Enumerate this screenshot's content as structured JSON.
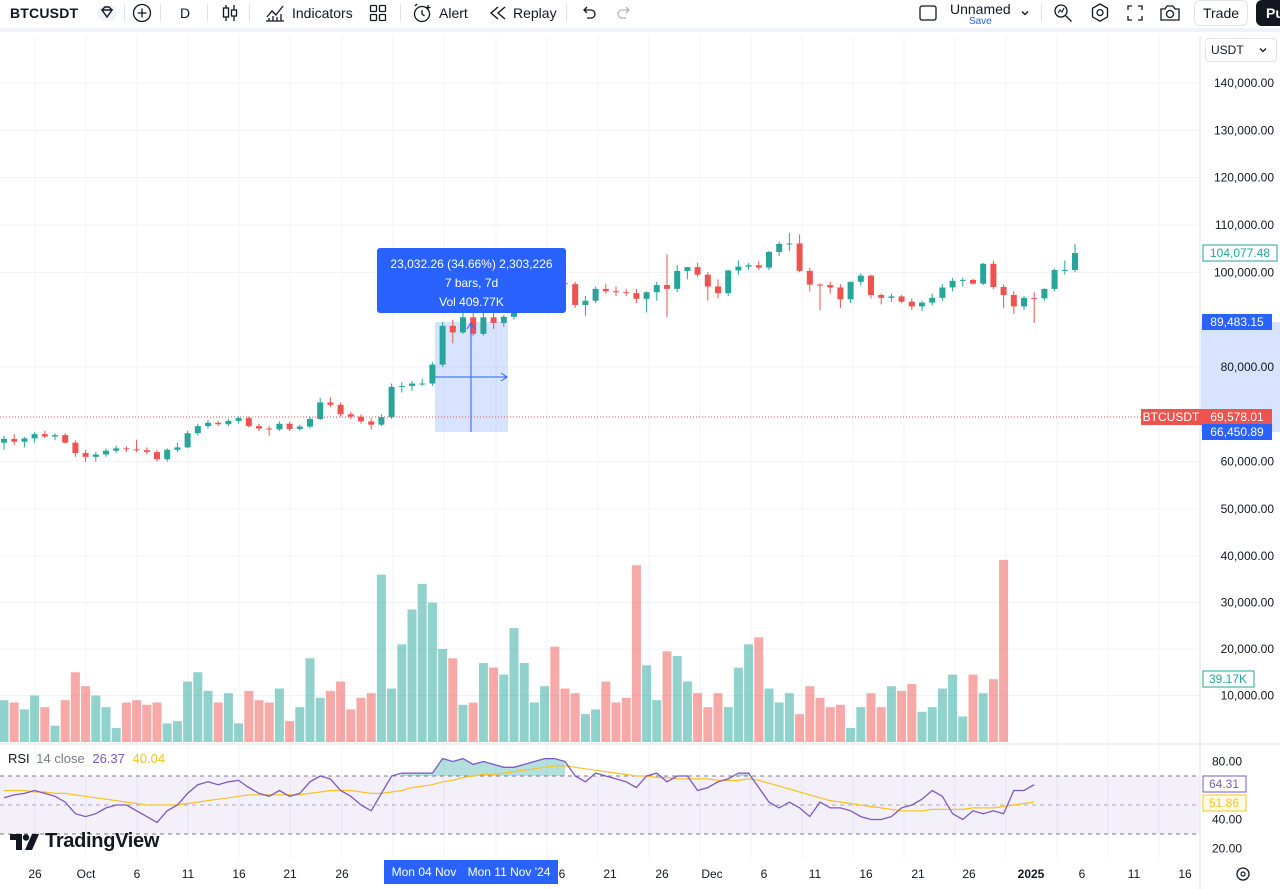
{
  "toolbar": {
    "symbol": "BTCUSDT",
    "interval": "D",
    "indicators_label": "Indicators",
    "alert_label": "Alert",
    "replay_label": "Replay",
    "layout_name": "Unnamed",
    "save_label": "Save",
    "trade_label": "Trade",
    "publish_label": "Pu"
  },
  "price_scale": {
    "currency": "USDT",
    "ticks": [
      "140,000.00",
      "130,000.00",
      "120,000.00",
      "110,000.00",
      "100,000.00",
      "80,000.00",
      "60,000.00",
      "50,000.00",
      "40,000.00",
      "30,000.00",
      "20,000.00",
      "10,000.00"
    ],
    "last_price_tag": "104,077.48",
    "measure_top_tag": "89,483.15",
    "measure_bottom_tag": "66,450.89",
    "crosshair_symbol": "BTCUSDT",
    "crosshair_price": "69,578.01",
    "volume_tag": "39.17K"
  },
  "measure": {
    "line1": "23,032.26 (34.66%) 2,303,226",
    "line2": "7 bars, 7d",
    "line3": "Vol 409.77K"
  },
  "rsi": {
    "name": "RSI",
    "params": "14 close",
    "value": "26.37",
    "ma_value": "40.04",
    "ticks": [
      "80.00",
      "40.00",
      "20.00"
    ],
    "tag_value": "64.31",
    "tag_ma": "51.86"
  },
  "time_axis": {
    "labels": [
      "26",
      "Oct",
      "6",
      "11",
      "16",
      "21",
      "26",
      "6",
      "21",
      "26",
      "Dec",
      "6",
      "11",
      "16",
      "21",
      "26",
      "2025",
      "6",
      "11",
      "16"
    ],
    "tip_start": "Mon 04 Nov",
    "tip_end": "Mon 11 Nov '24"
  },
  "branding": {
    "logo_text": "TradingView"
  },
  "colors": {
    "up": "#26a69a",
    "down": "#ef5350",
    "accent": "#2962ff",
    "rsi": "#7e57c2",
    "rsi_ma": "#f7c325"
  },
  "chart_data": {
    "type": "candlestick",
    "ylim": [
      40000,
      145000
    ],
    "candles": [
      {
        "o": 64000,
        "h": 65500,
        "l": 62500,
        "c": 64800
      },
      {
        "o": 64800,
        "h": 65800,
        "l": 63500,
        "c": 64200
      },
      {
        "o": 64200,
        "h": 65200,
        "l": 63000,
        "c": 64900
      },
      {
        "o": 64900,
        "h": 66200,
        "l": 64000,
        "c": 65800
      },
      {
        "o": 65800,
        "h": 66500,
        "l": 65000,
        "c": 65300
      },
      {
        "o": 65300,
        "h": 66000,
        "l": 64500,
        "c": 65600
      },
      {
        "o": 65600,
        "h": 66000,
        "l": 63800,
        "c": 64000
      },
      {
        "o": 64000,
        "h": 64500,
        "l": 61000,
        "c": 61800
      },
      {
        "o": 61800,
        "h": 62500,
        "l": 60000,
        "c": 61000
      },
      {
        "o": 61000,
        "h": 62000,
        "l": 60000,
        "c": 61500
      },
      {
        "o": 61500,
        "h": 62800,
        "l": 61000,
        "c": 62300
      },
      {
        "o": 62300,
        "h": 63400,
        "l": 61800,
        "c": 62800
      },
      {
        "o": 62800,
        "h": 63200,
        "l": 62000,
        "c": 62600
      },
      {
        "o": 62600,
        "h": 64600,
        "l": 62000,
        "c": 62400
      },
      {
        "o": 62400,
        "h": 63000,
        "l": 61500,
        "c": 62000
      },
      {
        "o": 62000,
        "h": 62500,
        "l": 60000,
        "c": 60500
      },
      {
        "o": 60500,
        "h": 62800,
        "l": 60000,
        "c": 62500
      },
      {
        "o": 62500,
        "h": 64000,
        "l": 62000,
        "c": 63000
      },
      {
        "o": 63000,
        "h": 66500,
        "l": 62800,
        "c": 66000
      },
      {
        "o": 66000,
        "h": 68000,
        "l": 65500,
        "c": 67500
      },
      {
        "o": 67500,
        "h": 68800,
        "l": 67000,
        "c": 68200
      },
      {
        "o": 68200,
        "h": 68600,
        "l": 67500,
        "c": 67900
      },
      {
        "o": 67900,
        "h": 69000,
        "l": 67500,
        "c": 68600
      },
      {
        "o": 68600,
        "h": 69500,
        "l": 68000,
        "c": 69200
      },
      {
        "o": 69200,
        "h": 69500,
        "l": 67200,
        "c": 67500
      },
      {
        "o": 67500,
        "h": 68000,
        "l": 66500,
        "c": 67000
      },
      {
        "o": 67000,
        "h": 67500,
        "l": 65500,
        "c": 66800
      },
      {
        "o": 66800,
        "h": 68500,
        "l": 66500,
        "c": 68000
      },
      {
        "o": 68000,
        "h": 68500,
        "l": 66500,
        "c": 66900
      },
      {
        "o": 66900,
        "h": 67800,
        "l": 66500,
        "c": 67400
      },
      {
        "o": 67400,
        "h": 69500,
        "l": 67000,
        "c": 69000
      },
      {
        "o": 69000,
        "h": 73500,
        "l": 68800,
        "c": 72500
      },
      {
        "o": 72500,
        "h": 73600,
        "l": 71500,
        "c": 72000
      },
      {
        "o": 72000,
        "h": 72500,
        "l": 69500,
        "c": 70000
      },
      {
        "o": 70000,
        "h": 70500,
        "l": 69000,
        "c": 69500
      },
      {
        "o": 69500,
        "h": 70000,
        "l": 68000,
        "c": 68500
      },
      {
        "o": 68500,
        "h": 69200,
        "l": 66800,
        "c": 67800
      },
      {
        "o": 67800,
        "h": 70000,
        "l": 67500,
        "c": 69400
      },
      {
        "o": 69400,
        "h": 76500,
        "l": 69000,
        "c": 75800
      },
      {
        "o": 75800,
        "h": 76800,
        "l": 74600,
        "c": 76000
      },
      {
        "o": 76000,
        "h": 77000,
        "l": 75000,
        "c": 76500
      },
      {
        "o": 76500,
        "h": 77500,
        "l": 76000,
        "c": 76500
      },
      {
        "o": 76500,
        "h": 81000,
        "l": 76000,
        "c": 80500
      },
      {
        "o": 80500,
        "h": 89500,
        "l": 80000,
        "c": 88700
      },
      {
        "o": 88700,
        "h": 90000,
        "l": 85000,
        "c": 87300
      },
      {
        "o": 87300,
        "h": 91800,
        "l": 87000,
        "c": 90500
      },
      {
        "o": 90500,
        "h": 93000,
        "l": 86500,
        "c": 87000
      },
      {
        "o": 87000,
        "h": 91500,
        "l": 86600,
        "c": 90500
      },
      {
        "o": 90500,
        "h": 92000,
        "l": 88000,
        "c": 89300
      },
      {
        "o": 89300,
        "h": 91000,
        "l": 88500,
        "c": 90600
      },
      {
        "o": 90600,
        "h": 94000,
        "l": 90000,
        "c": 92300
      },
      {
        "o": 92300,
        "h": 94500,
        "l": 91500,
        "c": 94300
      },
      {
        "o": 94300,
        "h": 98500,
        "l": 94000,
        "c": 98300
      },
      {
        "o": 98300,
        "h": 99600,
        "l": 97500,
        "c": 98900
      },
      {
        "o": 98900,
        "h": 99000,
        "l": 97000,
        "c": 97700
      },
      {
        "o": 97700,
        "h": 98500,
        "l": 96500,
        "c": 97500
      },
      {
        "o": 97500,
        "h": 98000,
        "l": 92500,
        "c": 93100
      },
      {
        "o": 93100,
        "h": 95000,
        "l": 90800,
        "c": 94000
      },
      {
        "o": 94000,
        "h": 97000,
        "l": 93500,
        "c": 96500
      },
      {
        "o": 96500,
        "h": 97500,
        "l": 95500,
        "c": 96000
      },
      {
        "o": 96000,
        "h": 97000,
        "l": 95000,
        "c": 95800
      },
      {
        "o": 95800,
        "h": 96500,
        "l": 95000,
        "c": 95600
      },
      {
        "o": 95600,
        "h": 96500,
        "l": 93500,
        "c": 94400
      },
      {
        "o": 94400,
        "h": 96000,
        "l": 91500,
        "c": 95800
      },
      {
        "o": 95800,
        "h": 98000,
        "l": 94000,
        "c": 97300
      },
      {
        "o": 97300,
        "h": 103800,
        "l": 90500,
        "c": 96500
      },
      {
        "o": 96500,
        "h": 101500,
        "l": 95800,
        "c": 100300
      },
      {
        "o": 100300,
        "h": 101000,
        "l": 98500,
        "c": 101100
      },
      {
        "o": 101100,
        "h": 102000,
        "l": 99000,
        "c": 99500
      },
      {
        "o": 99500,
        "h": 100000,
        "l": 94000,
        "c": 97000
      },
      {
        "o": 97000,
        "h": 98500,
        "l": 94500,
        "c": 95600
      },
      {
        "o": 95600,
        "h": 100500,
        "l": 95000,
        "c": 100400
      },
      {
        "o": 100400,
        "h": 102500,
        "l": 99500,
        "c": 101200
      },
      {
        "o": 101200,
        "h": 102000,
        "l": 100500,
        "c": 101500
      },
      {
        "o": 101500,
        "h": 102300,
        "l": 100500,
        "c": 101000
      },
      {
        "o": 101000,
        "h": 104500,
        "l": 100500,
        "c": 104300
      },
      {
        "o": 104300,
        "h": 106500,
        "l": 103500,
        "c": 106000
      },
      {
        "o": 106000,
        "h": 108300,
        "l": 104500,
        "c": 106100
      },
      {
        "o": 106100,
        "h": 108000,
        "l": 100000,
        "c": 100300
      },
      {
        "o": 100300,
        "h": 101000,
        "l": 96000,
        "c": 97400
      },
      {
        "o": 97400,
        "h": 97700,
        "l": 92000,
        "c": 97300
      },
      {
        "o": 97300,
        "h": 98000,
        "l": 95500,
        "c": 96800
      },
      {
        "o": 96800,
        "h": 97500,
        "l": 92500,
        "c": 94300
      },
      {
        "o": 94300,
        "h": 98000,
        "l": 93500,
        "c": 98000
      },
      {
        "o": 98000,
        "h": 99800,
        "l": 97200,
        "c": 99300
      },
      {
        "o": 99300,
        "h": 99500,
        "l": 94500,
        "c": 95200
      },
      {
        "o": 95200,
        "h": 95500,
        "l": 93200,
        "c": 94600
      },
      {
        "o": 94600,
        "h": 95500,
        "l": 93800,
        "c": 94900
      },
      {
        "o": 94900,
        "h": 95200,
        "l": 93500,
        "c": 93800
      },
      {
        "o": 93800,
        "h": 94500,
        "l": 92000,
        "c": 92800
      },
      {
        "o": 92800,
        "h": 94000,
        "l": 91800,
        "c": 93600
      },
      {
        "o": 93600,
        "h": 95500,
        "l": 93000,
        "c": 94600
      },
      {
        "o": 94600,
        "h": 97500,
        "l": 94000,
        "c": 96800
      },
      {
        "o": 96800,
        "h": 98800,
        "l": 96000,
        "c": 98200
      },
      {
        "o": 98200,
        "h": 98900,
        "l": 97000,
        "c": 98400
      },
      {
        "o": 98400,
        "h": 98600,
        "l": 97400,
        "c": 97600
      },
      {
        "o": 97600,
        "h": 102000,
        "l": 97300,
        "c": 101800
      },
      {
        "o": 101800,
        "h": 102500,
        "l": 96500,
        "c": 96900
      },
      {
        "o": 96900,
        "h": 97500,
        "l": 92500,
        "c": 95200
      },
      {
        "o": 95200,
        "h": 96000,
        "l": 91200,
        "c": 92800
      },
      {
        "o": 92800,
        "h": 95000,
        "l": 92000,
        "c": 94600
      },
      {
        "o": 94600,
        "h": 95800,
        "l": 89300,
        "c": 94500
      },
      {
        "o": 94500,
        "h": 96600,
        "l": 94000,
        "c": 96500
      },
      {
        "o": 96500,
        "h": 100800,
        "l": 96000,
        "c": 100500
      },
      {
        "o": 100500,
        "h": 102500,
        "l": 99500,
        "c": 100500
      },
      {
        "o": 100500,
        "h": 106000,
        "l": 100000,
        "c": 104077
      }
    ],
    "volume_values": [
      9000,
      8500,
      7000,
      10000,
      7500,
      3500,
      9000,
      15000,
      12000,
      10000,
      7500,
      3000,
      8500,
      9000,
      8000,
      8500,
      4000,
      4500,
      13000,
      15000,
      11000,
      8500,
      10500,
      4000,
      11000,
      9000,
      8500,
      11500,
      4500,
      7500,
      18000,
      9500,
      11000,
      13000,
      7000,
      9500,
      10500,
      36000,
      11500,
      21000,
      28500,
      34000,
      30000,
      20000,
      18000,
      8000,
      8500,
      17000,
      16000,
      14500,
      24500,
      17000,
      8500,
      12000,
      20500,
      11500,
      10500,
      6000,
      7000,
      13000,
      8500,
      9500,
      38000,
      16500,
      9000,
      19500,
      18500,
      13000,
      10500,
      7500,
      10500,
      7500,
      16000,
      21000,
      22500,
      11500,
      8500,
      10500,
      6000,
      12000,
      9500,
      7500,
      8000,
      3000,
      7500,
      10500,
      7500,
      12000,
      11000,
      12500,
      6500,
      7500,
      11500,
      14500,
      5500,
      14500,
      10500,
      13500,
      39170
    ],
    "volume_ylim": [
      0,
      40000
    ],
    "rsi_ylim": [
      20,
      80
    ],
    "rsi_bands": [
      70,
      30
    ],
    "rsi_values": [
      55,
      57,
      58,
      60,
      58,
      56,
      52,
      44,
      42,
      44,
      48,
      50,
      50,
      46,
      42,
      38,
      46,
      50,
      58,
      64,
      66,
      64,
      66,
      67,
      62,
      58,
      56,
      60,
      56,
      58,
      66,
      70,
      68,
      60,
      56,
      50,
      46,
      58,
      70,
      72,
      72,
      72,
      72,
      82,
      80,
      82,
      78,
      80,
      78,
      76,
      76,
      78,
      80,
      82,
      82,
      80,
      70,
      66,
      72,
      70,
      68,
      66,
      62,
      70,
      72,
      66,
      70,
      70,
      60,
      62,
      66,
      68,
      72,
      72,
      62,
      52,
      48,
      52,
      48,
      42,
      52,
      48,
      48,
      46,
      42,
      40,
      40,
      42,
      48,
      50,
      54,
      60,
      56,
      44,
      40,
      46,
      44,
      46,
      44,
      60,
      60,
      64
    ],
    "rsi_ma_values": [
      60,
      60,
      60,
      59,
      59,
      58,
      58,
      57,
      56,
      55,
      54,
      53,
      52,
      51,
      50,
      50,
      50,
      50,
      51,
      52,
      53,
      54,
      55,
      56,
      57,
      57,
      57,
      57,
      57,
      57,
      58,
      59,
      60,
      60,
      60,
      59,
      58,
      58,
      59,
      60,
      62,
      63,
      64,
      66,
      67,
      69,
      70,
      71,
      71,
      72,
      73,
      74,
      75,
      76,
      77,
      77,
      76,
      75,
      74,
      73,
      72,
      71,
      70,
      70,
      69,
      69,
      68,
      68,
      68,
      68,
      67,
      67,
      67,
      68,
      67,
      65,
      63,
      61,
      59,
      57,
      55,
      53,
      52,
      51,
      50,
      49,
      48,
      47,
      46,
      46,
      46,
      47,
      47,
      47,
      47,
      48,
      48,
      48,
      49,
      50,
      51,
      52
    ]
  }
}
